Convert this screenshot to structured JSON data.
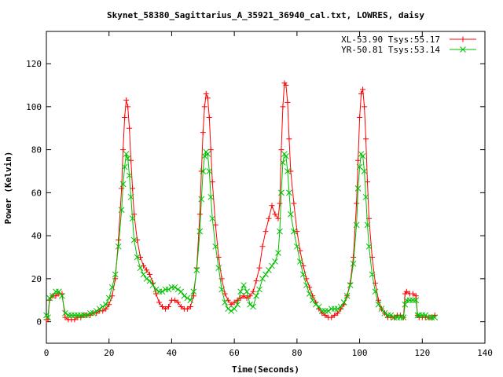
{
  "chart_data": {
    "type": "line",
    "title": "Skynet_58380_Sagittarius_A_35921_36940_cal.txt, LOWRES, daisy",
    "xlabel": "Time(Seconds)",
    "ylabel": "Power (Kelvin)",
    "xlim": [
      0,
      140
    ],
    "ylim": [
      -10,
      135
    ],
    "xticks": [
      0,
      20,
      40,
      60,
      80,
      100,
      120,
      140
    ],
    "yticks": [
      0,
      20,
      40,
      60,
      80,
      100,
      120
    ],
    "grid": false,
    "legend_position": "top-right",
    "series": [
      {
        "name": "XL-53.90 Tsys:55.17",
        "color": "#ff0000",
        "marker": "plus",
        "points": [
          [
            0,
            1
          ],
          [
            0.5,
            1
          ],
          [
            1,
            10
          ],
          [
            2,
            12
          ],
          [
            3,
            12
          ],
          [
            4,
            13
          ],
          [
            5,
            13
          ],
          [
            6,
            2
          ],
          [
            7,
            1
          ],
          [
            8,
            1
          ],
          [
            9,
            1
          ],
          [
            10,
            2
          ],
          [
            11,
            2
          ],
          [
            12,
            3
          ],
          [
            13,
            3
          ],
          [
            14,
            3
          ],
          [
            15,
            4
          ],
          [
            16,
            4
          ],
          [
            17,
            5
          ],
          [
            18,
            5
          ],
          [
            19,
            6
          ],
          [
            20,
            8
          ],
          [
            21,
            12
          ],
          [
            22,
            20
          ],
          [
            23,
            38
          ],
          [
            24,
            62
          ],
          [
            24.5,
            80
          ],
          [
            25,
            95
          ],
          [
            25.5,
            103
          ],
          [
            26,
            100
          ],
          [
            26.5,
            90
          ],
          [
            27,
            75
          ],
          [
            27.5,
            62
          ],
          [
            28,
            50
          ],
          [
            29,
            38
          ],
          [
            30,
            30
          ],
          [
            31,
            26
          ],
          [
            32,
            24
          ],
          [
            33,
            22
          ],
          [
            34,
            18
          ],
          [
            35,
            13
          ],
          [
            36,
            9
          ],
          [
            37,
            7
          ],
          [
            38,
            6
          ],
          [
            39,
            7
          ],
          [
            40,
            10
          ],
          [
            41,
            10
          ],
          [
            42,
            9
          ],
          [
            43,
            7
          ],
          [
            44,
            6
          ],
          [
            45,
            6
          ],
          [
            46,
            7
          ],
          [
            47,
            12
          ],
          [
            48,
            25
          ],
          [
            49,
            50
          ],
          [
            49.5,
            70
          ],
          [
            50,
            88
          ],
          [
            50.5,
            100
          ],
          [
            51,
            106
          ],
          [
            51.5,
            104
          ],
          [
            52,
            95
          ],
          [
            52.5,
            80
          ],
          [
            53,
            65
          ],
          [
            54,
            45
          ],
          [
            55,
            30
          ],
          [
            56,
            20
          ],
          [
            57,
            13
          ],
          [
            58,
            10
          ],
          [
            59,
            8
          ],
          [
            60,
            9
          ],
          [
            61,
            10
          ],
          [
            62,
            11
          ],
          [
            63,
            12
          ],
          [
            64,
            11
          ],
          [
            65,
            12
          ],
          [
            66,
            14
          ],
          [
            67,
            19
          ],
          [
            68,
            25
          ],
          [
            69,
            35
          ],
          [
            70,
            42
          ],
          [
            71,
            48
          ],
          [
            72,
            54
          ],
          [
            73,
            50
          ],
          [
            74,
            48
          ],
          [
            74.5,
            55
          ],
          [
            75,
            80
          ],
          [
            75.5,
            100
          ],
          [
            76,
            111
          ],
          [
            76.5,
            110
          ],
          [
            77,
            102
          ],
          [
            77.5,
            85
          ],
          [
            78,
            70
          ],
          [
            79,
            55
          ],
          [
            80,
            42
          ],
          [
            81,
            33
          ],
          [
            82,
            26
          ],
          [
            83,
            20
          ],
          [
            84,
            16
          ],
          [
            85,
            12
          ],
          [
            86,
            9
          ],
          [
            87,
            6
          ],
          [
            88,
            4
          ],
          [
            89,
            3
          ],
          [
            90,
            2
          ],
          [
            91,
            2
          ],
          [
            92,
            3
          ],
          [
            93,
            4
          ],
          [
            94,
            6
          ],
          [
            95,
            8
          ],
          [
            96,
            12
          ],
          [
            97,
            18
          ],
          [
            98,
            30
          ],
          [
            99,
            55
          ],
          [
            99.5,
            75
          ],
          [
            100,
            95
          ],
          [
            100.5,
            106
          ],
          [
            101,
            108
          ],
          [
            101.5,
            100
          ],
          [
            102,
            85
          ],
          [
            102.5,
            65
          ],
          [
            103,
            48
          ],
          [
            104,
            30
          ],
          [
            105,
            18
          ],
          [
            106,
            10
          ],
          [
            107,
            6
          ],
          [
            108,
            4
          ],
          [
            109,
            2
          ],
          [
            110,
            2
          ],
          [
            111,
            2
          ],
          [
            112,
            3
          ],
          [
            113,
            3
          ],
          [
            114,
            2
          ],
          [
            114.5,
            13
          ],
          [
            115,
            14
          ],
          [
            116,
            13
          ],
          [
            117,
            13
          ],
          [
            118,
            12
          ],
          [
            118.5,
            3
          ],
          [
            119,
            2
          ],
          [
            120,
            2
          ],
          [
            121,
            2
          ],
          [
            122,
            2
          ],
          [
            123,
            2
          ],
          [
            124,
            3
          ]
        ]
      },
      {
        "name": "YR-50.81 Tsys:53.14",
        "color": "#00c000",
        "marker": "cross",
        "points": [
          [
            0,
            3
          ],
          [
            0.5,
            2
          ],
          [
            1,
            11
          ],
          [
            2,
            12
          ],
          [
            3,
            14
          ],
          [
            4,
            14
          ],
          [
            5,
            12
          ],
          [
            6,
            4
          ],
          [
            7,
            3
          ],
          [
            8,
            3
          ],
          [
            9,
            3
          ],
          [
            10,
            3
          ],
          [
            11,
            3
          ],
          [
            12,
            3
          ],
          [
            13,
            3
          ],
          [
            14,
            4
          ],
          [
            15,
            4
          ],
          [
            16,
            5
          ],
          [
            17,
            6
          ],
          [
            18,
            7
          ],
          [
            19,
            8
          ],
          [
            20,
            11
          ],
          [
            21,
            16
          ],
          [
            22,
            22
          ],
          [
            23,
            35
          ],
          [
            24,
            52
          ],
          [
            24.5,
            64
          ],
          [
            25,
            72
          ],
          [
            25.5,
            78
          ],
          [
            26,
            76
          ],
          [
            26.5,
            68
          ],
          [
            27,
            58
          ],
          [
            27.5,
            48
          ],
          [
            28,
            38
          ],
          [
            29,
            30
          ],
          [
            30,
            25
          ],
          [
            31,
            22
          ],
          [
            32,
            20
          ],
          [
            33,
            19
          ],
          [
            34,
            17
          ],
          [
            35,
            15
          ],
          [
            36,
            14
          ],
          [
            37,
            14
          ],
          [
            38,
            15
          ],
          [
            39,
            15
          ],
          [
            40,
            16
          ],
          [
            41,
            16
          ],
          [
            42,
            15
          ],
          [
            43,
            14
          ],
          [
            44,
            12
          ],
          [
            45,
            11
          ],
          [
            46,
            10
          ],
          [
            47,
            14
          ],
          [
            48,
            24
          ],
          [
            49,
            42
          ],
          [
            49.5,
            57
          ],
          [
            50,
            70
          ],
          [
            50.5,
            77
          ],
          [
            51,
            79
          ],
          [
            51.5,
            78
          ],
          [
            52,
            70
          ],
          [
            52.5,
            58
          ],
          [
            53,
            48
          ],
          [
            54,
            35
          ],
          [
            55,
            25
          ],
          [
            56,
            15
          ],
          [
            57,
            9
          ],
          [
            58,
            6
          ],
          [
            59,
            5
          ],
          [
            60,
            6
          ],
          [
            61,
            8
          ],
          [
            62,
            14
          ],
          [
            63,
            17
          ],
          [
            64,
            14
          ],
          [
            65,
            8
          ],
          [
            66,
            7
          ],
          [
            67,
            12
          ],
          [
            68,
            15
          ],
          [
            69,
            20
          ],
          [
            70,
            22
          ],
          [
            71,
            24
          ],
          [
            72,
            26
          ],
          [
            73,
            28
          ],
          [
            74,
            32
          ],
          [
            74.5,
            42
          ],
          [
            75,
            60
          ],
          [
            75.5,
            74
          ],
          [
            76,
            78
          ],
          [
            76.5,
            77
          ],
          [
            77,
            70
          ],
          [
            77.5,
            60
          ],
          [
            78,
            50
          ],
          [
            79,
            42
          ],
          [
            80,
            35
          ],
          [
            81,
            28
          ],
          [
            82,
            22
          ],
          [
            83,
            17
          ],
          [
            84,
            13
          ],
          [
            85,
            10
          ],
          [
            86,
            8
          ],
          [
            87,
            7
          ],
          [
            88,
            5
          ],
          [
            89,
            5
          ],
          [
            90,
            5
          ],
          [
            91,
            6
          ],
          [
            92,
            6
          ],
          [
            93,
            6
          ],
          [
            94,
            7
          ],
          [
            95,
            9
          ],
          [
            96,
            12
          ],
          [
            97,
            17
          ],
          [
            98,
            27
          ],
          [
            99,
            45
          ],
          [
            99.5,
            62
          ],
          [
            100,
            72
          ],
          [
            100.5,
            78
          ],
          [
            101,
            77
          ],
          [
            101.5,
            70
          ],
          [
            102,
            58
          ],
          [
            102.5,
            45
          ],
          [
            103,
            35
          ],
          [
            104,
            22
          ],
          [
            105,
            14
          ],
          [
            106,
            8
          ],
          [
            107,
            6
          ],
          [
            108,
            4
          ],
          [
            109,
            3
          ],
          [
            110,
            3
          ],
          [
            111,
            2
          ],
          [
            112,
            2
          ],
          [
            113,
            2
          ],
          [
            114,
            2
          ],
          [
            114.5,
            8
          ],
          [
            115,
            10
          ],
          [
            116,
            10
          ],
          [
            117,
            10
          ],
          [
            118,
            10
          ],
          [
            118.5,
            3
          ],
          [
            119,
            3
          ],
          [
            120,
            3
          ],
          [
            121,
            3
          ],
          [
            122,
            2
          ],
          [
            123,
            2
          ],
          [
            124,
            2
          ]
        ]
      }
    ]
  }
}
